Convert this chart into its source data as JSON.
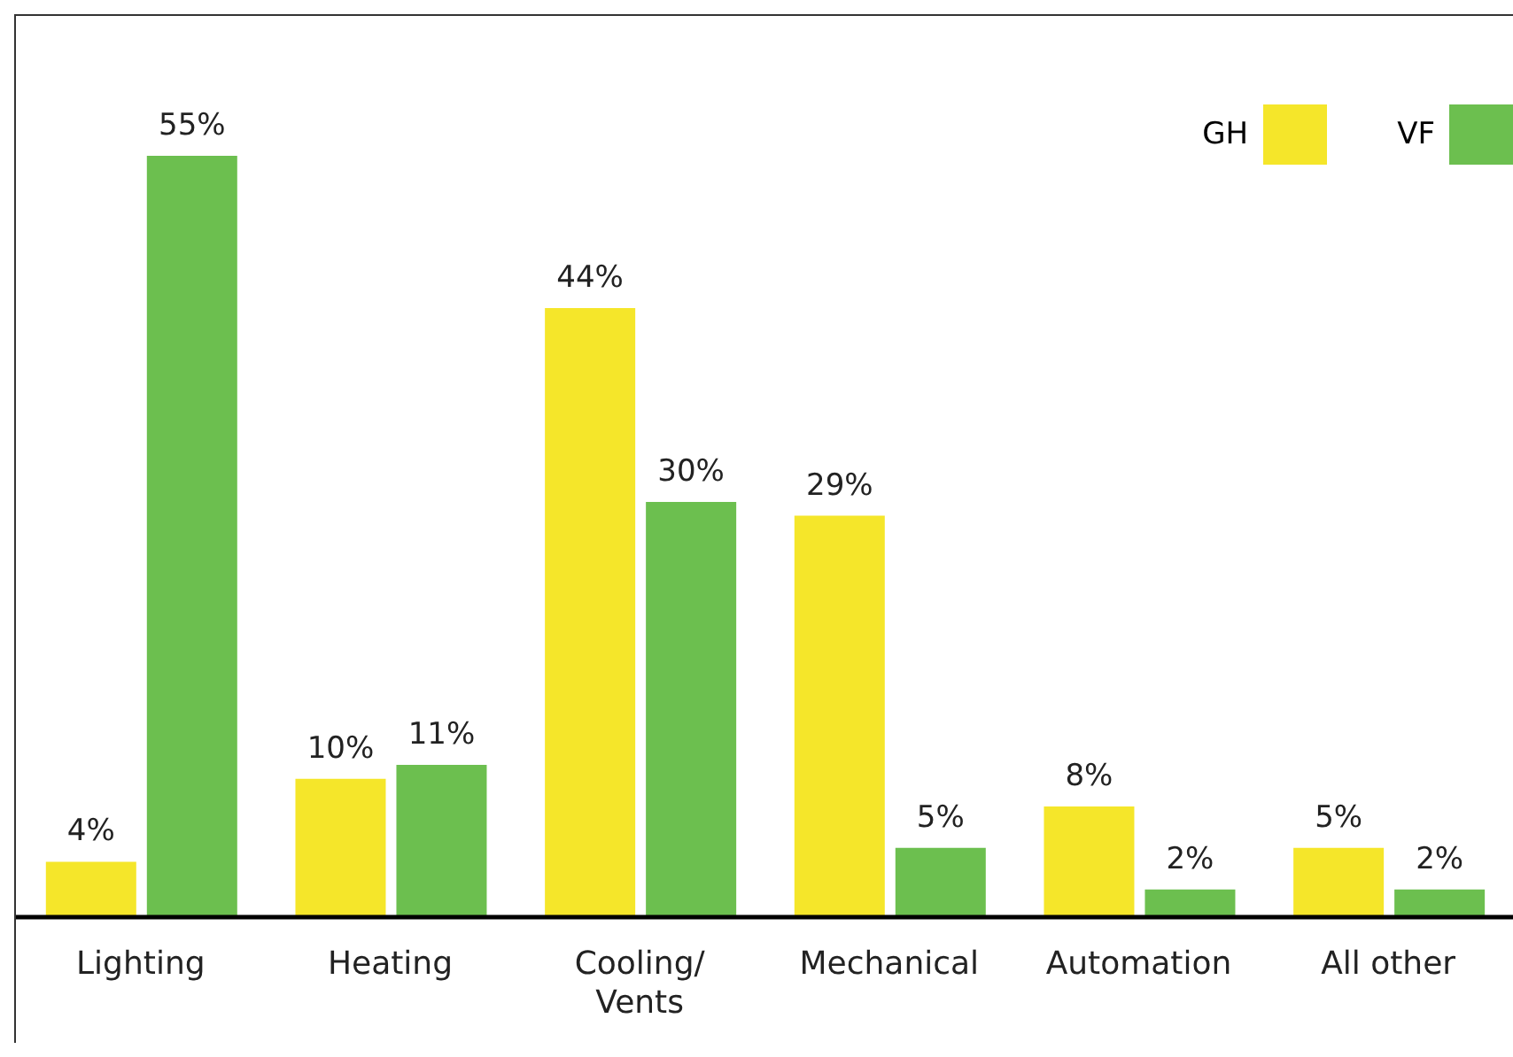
{
  "chart_data": {
    "type": "bar",
    "categories": [
      "Lighting",
      "Heating",
      "Cooling/\nVents",
      "Mechanical",
      "Automation",
      "All other"
    ],
    "series": [
      {
        "name": "GH",
        "color": "#f5e62a",
        "values": [
          4,
          10,
          44,
          29,
          8,
          5
        ],
        "value_labels": [
          "4%",
          "10%",
          "44%",
          "29%",
          "8%",
          "5%"
        ]
      },
      {
        "name": "VF",
        "color": "#6cbf4f",
        "values": [
          55,
          11,
          30,
          5,
          2,
          2
        ],
        "value_labels": [
          "55%",
          "11%",
          "30%",
          "5%",
          "2%",
          "2%"
        ]
      }
    ],
    "legend": "top right",
    "grid": false
  }
}
